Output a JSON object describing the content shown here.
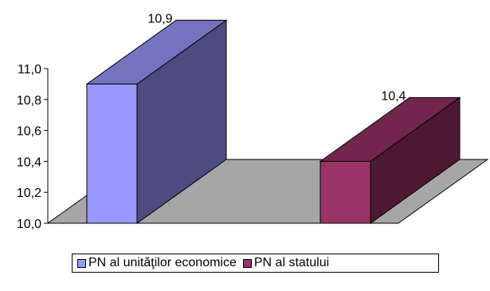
{
  "chart_data": {
    "type": "bar",
    "three_d": true,
    "categories": [
      "PN al unităţilor economice",
      "PN al statului"
    ],
    "values": [
      10.9,
      10.4
    ],
    "data_labels": [
      "10,9",
      "10,4"
    ],
    "ylim": [
      10.0,
      11.0
    ],
    "yticks": [
      10.0,
      10.2,
      10.4,
      10.6,
      10.8,
      11.0
    ],
    "ytick_labels": [
      "10,0",
      "10,2",
      "10,4",
      "10,6",
      "10,8",
      "11,0"
    ],
    "title": "",
    "xlabel": "",
    "ylabel": "",
    "grid": false,
    "legend": {
      "position": "bottom",
      "entries": [
        "PN al unităţilor economice",
        "PN al statului"
      ]
    },
    "colors": {
      "series_front": [
        "#9999ff",
        "#993366"
      ],
      "series_side": [
        "#4c4c80",
        "#4d1933"
      ],
      "series_top": [
        "#7373bf",
        "#73264d"
      ],
      "floor": "#a6a6a6"
    }
  }
}
